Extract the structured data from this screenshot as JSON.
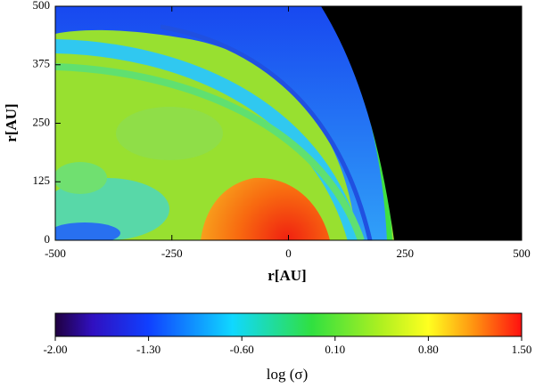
{
  "chart_data": {
    "type": "heatmap",
    "xlabel": "r[AU]",
    "ylabel": "r[AU]",
    "xlim": [
      -500,
      500
    ],
    "xticks": [
      -500,
      -250,
      0,
      250,
      500
    ],
    "ylim": [
      0,
      500
    ],
    "yticks": [
      0,
      125,
      250,
      375,
      500
    ],
    "colorbar": {
      "label": "log (σ)",
      "lim": [
        -2,
        1.5
      ],
      "ticks": [
        {
          "value": -2,
          "label": "-2.00"
        },
        {
          "value": -1.3,
          "label": "-1.30"
        },
        {
          "value": -0.6,
          "label": "-0.60"
        },
        {
          "value": 0.1,
          "label": "0.10"
        },
        {
          "value": 0.8,
          "label": "0.80"
        },
        {
          "value": 1.5,
          "label": "1.50"
        }
      ]
    }
  }
}
